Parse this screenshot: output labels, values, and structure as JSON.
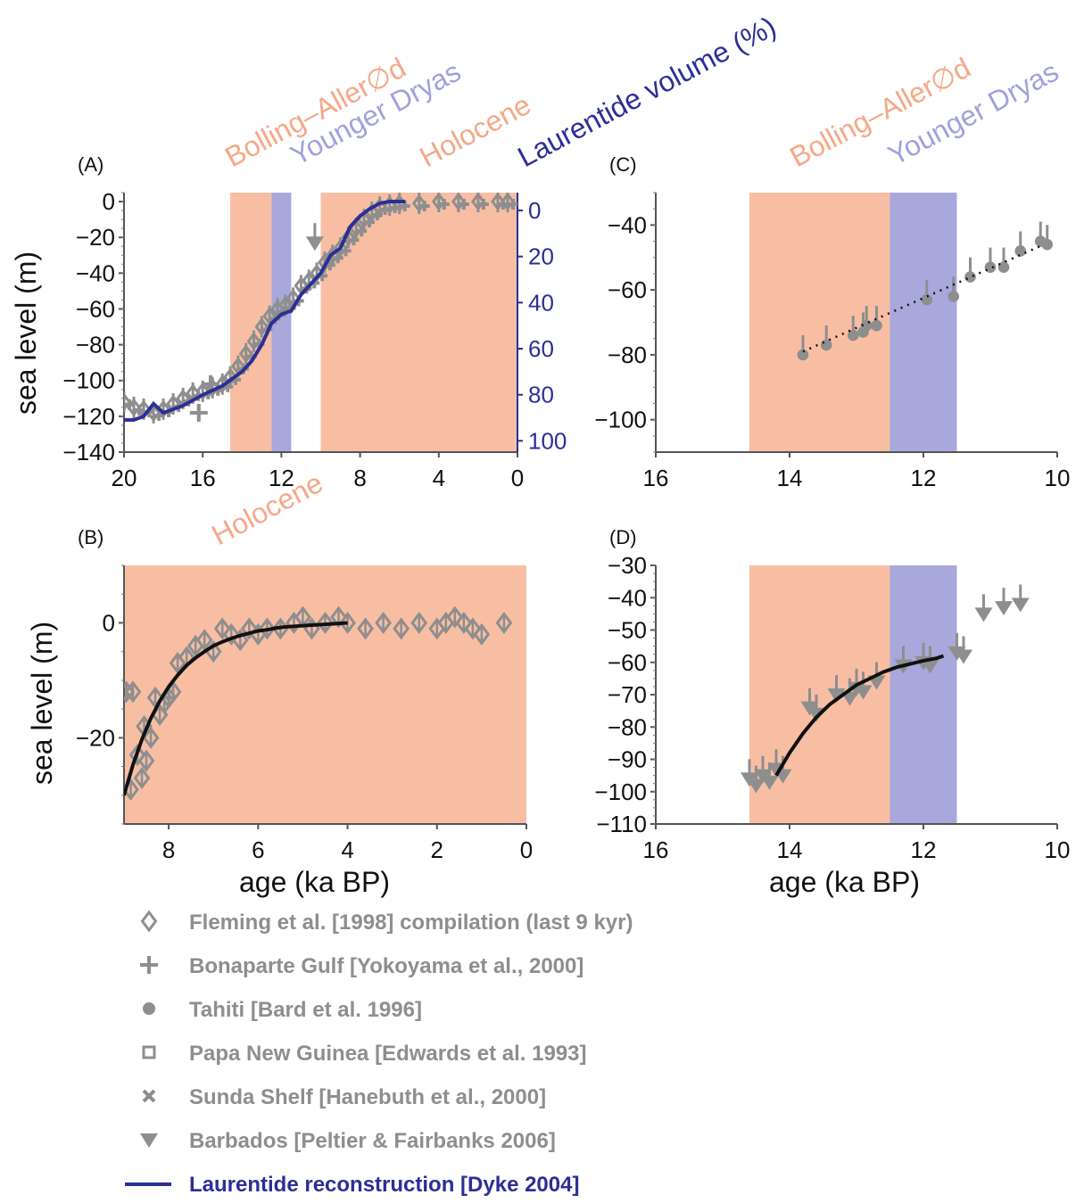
{
  "colors": {
    "bolling": "#f8bea4",
    "younger_dryas": "#a9a8dc",
    "holocene": "#f8bea4",
    "bolling_text": "#f4a888",
    "younger_dryas_text": "#a2a0dc",
    "data_gray": "#8e8e8e",
    "laurentide": "#2b2f95",
    "fit": "#111111"
  },
  "periods": {
    "bolling": "Bolling–Aller∅d",
    "younger_dryas": "Younger Dryas",
    "holocene": "Holocene",
    "laurentide": "Laurentide volume (%)"
  },
  "axis_titles": {
    "sea_level": "sea level (m)",
    "age": "age (ka BP)"
  },
  "legend": [
    {
      "marker": "diamond",
      "label": "Fleming et al. [1998] compilation (last 9 kyr)"
    },
    {
      "marker": "plus",
      "label": "Bonaparte Gulf [Yokoyama et al., 2000]"
    },
    {
      "marker": "circle",
      "label": "Tahiti [Bard et al. 1996]"
    },
    {
      "marker": "square",
      "label": "Papa New Guinea [Edwards et al. 1993]"
    },
    {
      "marker": "x",
      "label": "Sunda Shelf [Hanebuth et al., 2000]"
    },
    {
      "marker": "triangle-down",
      "label": "Barbados [Peltier & Fairbanks 2006]"
    },
    {
      "marker": "line",
      "label": "Laurentide reconstruction [Dyke 2004]"
    }
  ],
  "chart_data": [
    {
      "id": "A",
      "panel_label": "(A)",
      "type": "scatter",
      "xlim": [
        20,
        0
      ],
      "ylim": [
        -140,
        5
      ],
      "xticks": [
        20,
        16,
        12,
        8,
        4,
        0
      ],
      "yticks": [
        0,
        -20,
        -40,
        -60,
        -80,
        -100,
        -120,
        -140
      ],
      "y2lim": [
        0,
        108
      ],
      "y2ticks": [
        0,
        20,
        40,
        60,
        80,
        100
      ],
      "shading": [
        {
          "period": "bolling",
          "from": 14.6,
          "to": 12.5
        },
        {
          "period": "younger_dryas",
          "from": 12.5,
          "to": 11.5
        },
        {
          "period": "holocene",
          "from": 10.0,
          "to": 0
        }
      ],
      "series": [
        {
          "marker": "cloud",
          "x": [
            20,
            19.5,
            19,
            18.5,
            18,
            17.5,
            17,
            16.5,
            16,
            15.5,
            15,
            14.6,
            14.2,
            13.8,
            13.4,
            13,
            12.6,
            12.2,
            11.8,
            11.4,
            11,
            10.6,
            10.2,
            9.8,
            9.4,
            9,
            8.6,
            8.2,
            7.8,
            7.4,
            7,
            6.5,
            6,
            5,
            4,
            3,
            2,
            1,
            0.5
          ],
          "y": [
            -112,
            -115,
            -116,
            -118,
            -116,
            -113,
            -110,
            -107,
            -106,
            -104,
            -102,
            -98,
            -92,
            -85,
            -78,
            -70,
            -64,
            -60,
            -58,
            -54,
            -47,
            -44,
            -40,
            -34,
            -30,
            -26,
            -20,
            -15,
            -10,
            -6,
            -3,
            -2,
            -1,
            -1,
            0,
            0,
            0,
            0,
            0
          ]
        },
        {
          "marker": "plus",
          "x": [
            16.2,
            15.6
          ],
          "y": [
            -118,
            -102
          ]
        },
        {
          "marker": "triangle-down",
          "x": [
            10.3
          ],
          "y": [
            -23
          ]
        },
        {
          "marker": "line",
          "name": "Laurentide reconstruction",
          "x": [
            20,
            19.5,
            19,
            18.5,
            18,
            17,
            16,
            15,
            14,
            13.5,
            13,
            12.5,
            12,
            11.5,
            11,
            10.5,
            10,
            9.5,
            9,
            8.5,
            8,
            7.5,
            7,
            6.5,
            6,
            5.7
          ],
          "y": [
            -122,
            -122,
            -120,
            -113,
            -118,
            -114,
            -108,
            -103,
            -95,
            -89,
            -80,
            -68,
            -63,
            -61,
            -52,
            -46,
            -40,
            -30,
            -26,
            -14,
            -8,
            -4,
            -1,
            0,
            0,
            0
          ]
        }
      ]
    },
    {
      "id": "B",
      "panel_label": "(B)",
      "type": "scatter",
      "xlim": [
        9,
        0
      ],
      "ylim": [
        -35,
        10
      ],
      "xticks": [
        8,
        6,
        4,
        2,
        0
      ],
      "yticks": [
        0,
        -20
      ],
      "shading": [
        {
          "period": "holocene",
          "from": 9,
          "to": 0
        }
      ],
      "series": [
        {
          "marker": "diamond",
          "x": [
            8.95,
            8.85,
            8.8,
            8.7,
            8.6,
            8.55,
            8.5,
            8.4,
            8.3,
            8.2,
            8.1,
            8.0,
            7.9,
            7.8,
            7.6,
            7.4,
            7.2,
            7.0,
            6.8,
            6.6,
            6.4,
            6.2,
            6.0,
            5.8,
            5.5,
            5.2,
            5.0,
            4.8,
            4.5,
            4.2,
            4.0,
            3.6,
            3.2,
            2.8,
            2.4,
            2.0,
            1.8,
            1.6,
            1.4,
            1.2,
            1.0,
            0.5
          ],
          "y": [
            -12,
            -29,
            -12,
            -23,
            -27,
            -18,
            -24,
            -20,
            -13,
            -16,
            -14,
            -13,
            -12,
            -7,
            -6,
            -4,
            -3,
            -5,
            -1,
            -2,
            -3,
            -1,
            -2,
            -1,
            -1,
            0,
            1,
            -1,
            0,
            1,
            0,
            -1,
            0,
            -1,
            0,
            -1,
            0,
            1,
            0,
            -1,
            -2,
            0
          ]
        },
        {
          "marker": "line",
          "name": "fit",
          "x": [
            9,
            8.8,
            8.6,
            8.4,
            8.2,
            8,
            7.8,
            7.6,
            7.4,
            7.2,
            7,
            6.8,
            6.6,
            6.4,
            6.2,
            6,
            5.8,
            5.6,
            5.4,
            5.2,
            5,
            4.8,
            4.6,
            4.4,
            4.2,
            4
          ],
          "y": [
            -30,
            -24.7,
            -20.3,
            -16.6,
            -13.6,
            -11.1,
            -9.1,
            -7.4,
            -6.1,
            -5.0,
            -4.0,
            -3.3,
            -2.7,
            -2.2,
            -1.8,
            -1.4,
            -1.2,
            -0.9,
            -0.7,
            -0.6,
            -0.5,
            -0.4,
            -0.3,
            -0.2,
            -0.1,
            0
          ]
        }
      ]
    },
    {
      "id": "C",
      "panel_label": "(C)",
      "type": "scatter",
      "xlim": [
        16,
        10
      ],
      "ylim": [
        -110,
        -30
      ],
      "xticks": [
        16,
        14,
        12,
        10
      ],
      "yticks": [
        -40,
        -60,
        -80,
        -100
      ],
      "shading": [
        {
          "period": "bolling",
          "from": 14.6,
          "to": 12.5
        },
        {
          "period": "younger_dryas",
          "from": 12.5,
          "to": 11.5
        }
      ],
      "series": [
        {
          "marker": "circle",
          "x": [
            13.8,
            13.45,
            13.05,
            12.9,
            12.85,
            12.7,
            11.95,
            11.55,
            11.3,
            11.0,
            10.8,
            10.55,
            10.25,
            10.15
          ],
          "y": [
            -80,
            -77,
            -74,
            -73,
            -71,
            -71,
            -63,
            -62,
            -56,
            -53,
            -53,
            -48,
            -45,
            -46
          ]
        },
        {
          "marker": "dotted-line",
          "name": "trend",
          "x": [
            13.8,
            10.2
          ],
          "y": [
            -79,
            -46
          ]
        }
      ]
    },
    {
      "id": "D",
      "panel_label": "(D)",
      "type": "scatter",
      "xlim": [
        16,
        10
      ],
      "ylim": [
        -110,
        -30
      ],
      "xticks": [
        16,
        14,
        12,
        10
      ],
      "yticks": [
        -30,
        -40,
        -50,
        -60,
        -70,
        -80,
        -90,
        -100,
        -110
      ],
      "shading": [
        {
          "period": "bolling",
          "from": 14.6,
          "to": 12.5
        },
        {
          "period": "younger_dryas",
          "from": 12.5,
          "to": 11.5
        }
      ],
      "series": [
        {
          "marker": "triangle-down",
          "x": [
            14.6,
            14.5,
            14.4,
            14.3,
            14.2,
            14.1,
            13.7,
            13.6,
            13.3,
            13.1,
            13.0,
            12.9,
            12.7,
            12.3,
            12.0,
            11.9,
            11.5,
            11.4,
            11.1,
            10.8,
            10.55
          ],
          "y": [
            -96,
            -98,
            -95,
            -97,
            -93,
            -95,
            -74,
            -76,
            -70,
            -71,
            -68,
            -69,
            -66,
            -61,
            -60,
            -61,
            -57,
            -58,
            -45,
            -43,
            -42
          ]
        },
        {
          "marker": "line",
          "name": "fit",
          "x": [
            14.2,
            14.0,
            13.8,
            13.6,
            13.4,
            13.2,
            13.0,
            12.8,
            12.6,
            12.4,
            12.2,
            12.0,
            11.8,
            11.7
          ],
          "y": [
            -95,
            -88,
            -82,
            -77,
            -73,
            -70,
            -67,
            -65,
            -63,
            -61.5,
            -60.5,
            -59.5,
            -58.7,
            -58
          ]
        }
      ]
    }
  ]
}
